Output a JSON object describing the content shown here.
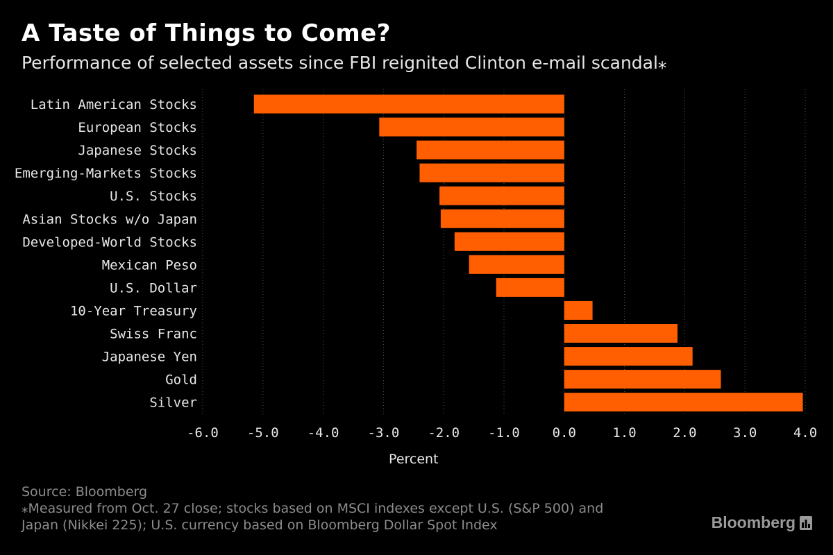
{
  "title": "A Taste of Things to Come?",
  "subtitle": "Performance of selected assets since FBI reignited Clinton e-mail scandal⁎",
  "chart_data": {
    "type": "bar",
    "orientation": "horizontal",
    "title": "A Taste of Things to Come?",
    "subtitle": "Performance of selected assets since FBI reignited Clinton e-mail scandal⁎",
    "xlabel": "Percent",
    "ylabel": "",
    "xlim": [
      -6.0,
      4.0
    ],
    "ticks": [
      "-6.0",
      "-5.0",
      "-4.0",
      "-3.0",
      "-2.0",
      "-1.0",
      "0.0",
      "1.0",
      "2.0",
      "3.0",
      "4.0"
    ],
    "tick_values": [
      -6,
      -5,
      -4,
      -3,
      -2,
      -1,
      0,
      1,
      2,
      3,
      4
    ],
    "grid": true,
    "categories": [
      "Latin American Stocks",
      "European Stocks",
      "Japanese Stocks",
      "Emerging-Markets Stocks",
      "U.S. Stocks",
      "Asian Stocks w/o Japan",
      "Developed-World Stocks",
      "Mexican Peso",
      "U.S. Dollar",
      "10-Year Treasury",
      "Swiss Franc",
      "Japanese Yen",
      "Gold",
      "Silver"
    ],
    "values": [
      -5.15,
      -3.07,
      -2.45,
      -2.4,
      -2.07,
      -2.05,
      -1.82,
      -1.58,
      -1.13,
      0.47,
      1.88,
      2.13,
      2.6,
      3.96
    ],
    "bar_color": "#ff5f00"
  },
  "footer": {
    "source": "Source: Bloomberg",
    "note_line1": "⁎Measured from Oct. 27 close; stocks based on MSCI indexes except U.S. (S&P 500) and",
    "note_line2": "Japan (Nikkei 225); U.S. currency based on Bloomberg Dollar Spot Index"
  },
  "brand": {
    "name": "Bloomberg",
    "icon": "bloomberg-chart-icon"
  },
  "colors": {
    "background": "#000000",
    "bar": "#ff5f00",
    "grid": "#555555",
    "text": "#e8e8e8",
    "muted": "#8c8c8c"
  }
}
